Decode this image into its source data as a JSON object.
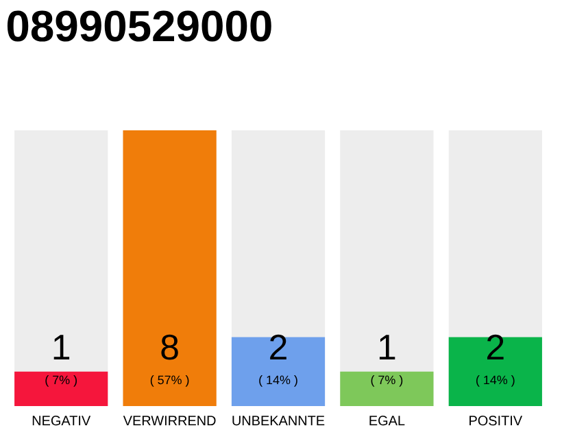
{
  "chart_data": {
    "type": "bar",
    "title": "08990529000",
    "categories": [
      "NEGATIV",
      "VERWIRREND",
      "UNBEKANNTE",
      "EGAL",
      "POSITIV"
    ],
    "values": [
      1,
      8,
      2,
      1,
      2
    ],
    "colors": [
      "#f5163c",
      "#f07d0a",
      "#6ea0ec",
      "#7ec85a",
      "#0ab44a"
    ],
    "data_labels": true,
    "annotations": [
      "( 7% )",
      "( 57% )",
      "( 14% )",
      "( 7% )",
      "( 14% )"
    ]
  }
}
